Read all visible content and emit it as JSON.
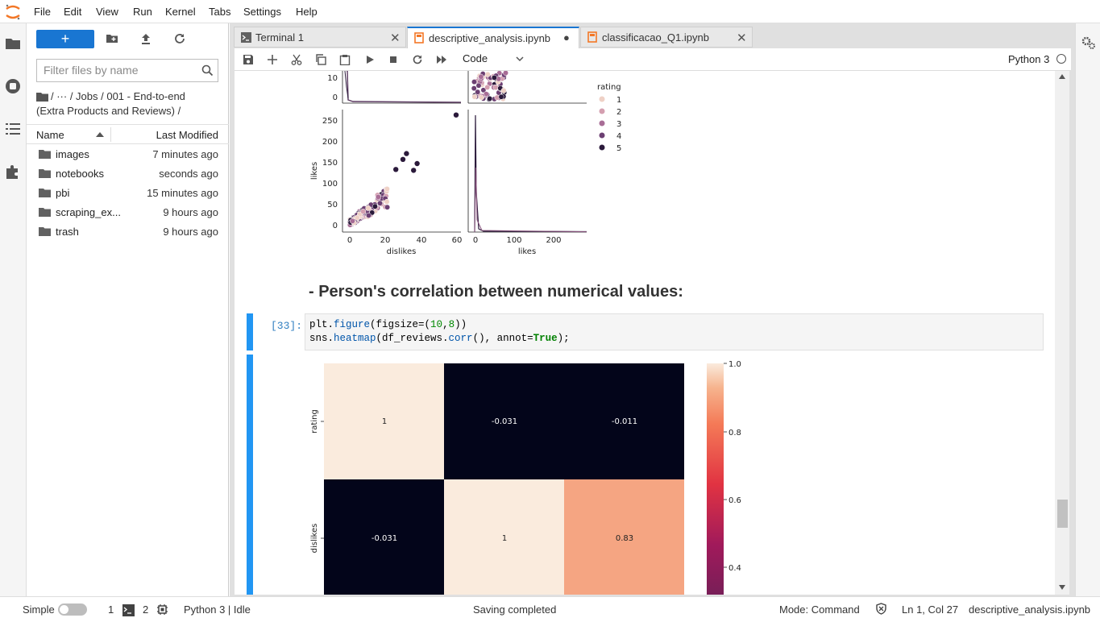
{
  "menubar": {
    "items": [
      "File",
      "Edit",
      "View",
      "Run",
      "Kernel",
      "Tabs",
      "Settings",
      "Help"
    ]
  },
  "filebrowser": {
    "new_label": "+",
    "filter_placeholder": "Filter files by name",
    "breadcrumb_line1": "/  ···  / Jobs / 001 - End-to-end",
    "breadcrumb_line2": "(Extra Products and Reviews) /",
    "col_name": "Name",
    "col_modified": "Last Modified",
    "files": [
      {
        "name": "images",
        "modified": "7 minutes ago"
      },
      {
        "name": "notebooks",
        "modified": "seconds ago"
      },
      {
        "name": "pbi",
        "modified": "15 minutes ago"
      },
      {
        "name": "scraping_ex...",
        "modified": "9 hours ago"
      },
      {
        "name": "trash",
        "modified": "9 hours ago"
      }
    ]
  },
  "tabs": [
    {
      "label": "Terminal 1",
      "close": "✕"
    },
    {
      "label": "descriptive_analysis.ipynb",
      "close": "●"
    },
    {
      "label": "classificacao_Q1.ipynb",
      "close": "✕"
    }
  ],
  "toolbar": {
    "cell_type": "Code",
    "kernel": "Python 3"
  },
  "notebook": {
    "heading": "- Person's correlation between numerical values:",
    "prompt": "[33]:",
    "code_line1": [
      "plt.",
      "figure",
      "(figsize=(",
      "10",
      "8",
      "))"
    ],
    "code_line2": [
      "sns.",
      "heatmap",
      "(df_reviews.",
      "corr",
      "(), annot=",
      "True",
      ");"
    ],
    "pairplot": {
      "legend_title": "rating",
      "legend_items": [
        "1",
        "2",
        "3",
        "4",
        "5"
      ],
      "legend_colors": [
        "#efd1c6",
        "#d49fb0",
        "#a86d96",
        "#6c3f72",
        "#2b1a3b"
      ],
      "top_ticks": [
        "10",
        "0"
      ],
      "likes_ticks": [
        "250",
        "200",
        "150",
        "100",
        "50",
        "0"
      ],
      "dislikes_ticks": [
        "0",
        "20",
        "40",
        "60"
      ],
      "likes_x_ticks": [
        "0",
        "100",
        "200"
      ],
      "ylabel": "likes",
      "xlabel_left": "dislikes",
      "xlabel_right": "likes"
    },
    "heatmap": {
      "row_labels": [
        "rating",
        "dislikes"
      ],
      "cells": [
        [
          "1",
          "-0.031",
          "-0.011"
        ],
        [
          "-0.031",
          "1",
          "0.83"
        ]
      ],
      "colorbar_ticks": [
        "1.0",
        "0.8",
        "0.6",
        "0.4"
      ]
    }
  },
  "statusbar": {
    "mode_label": "Simple",
    "terminals": "1",
    "kernels": "2",
    "kernel_status": "Python 3 | Idle",
    "message": "Saving completed",
    "mode": "Mode: Command",
    "cursor": "Ln 1, Col 27",
    "filename": "descriptive_analysis.ipynb"
  }
}
